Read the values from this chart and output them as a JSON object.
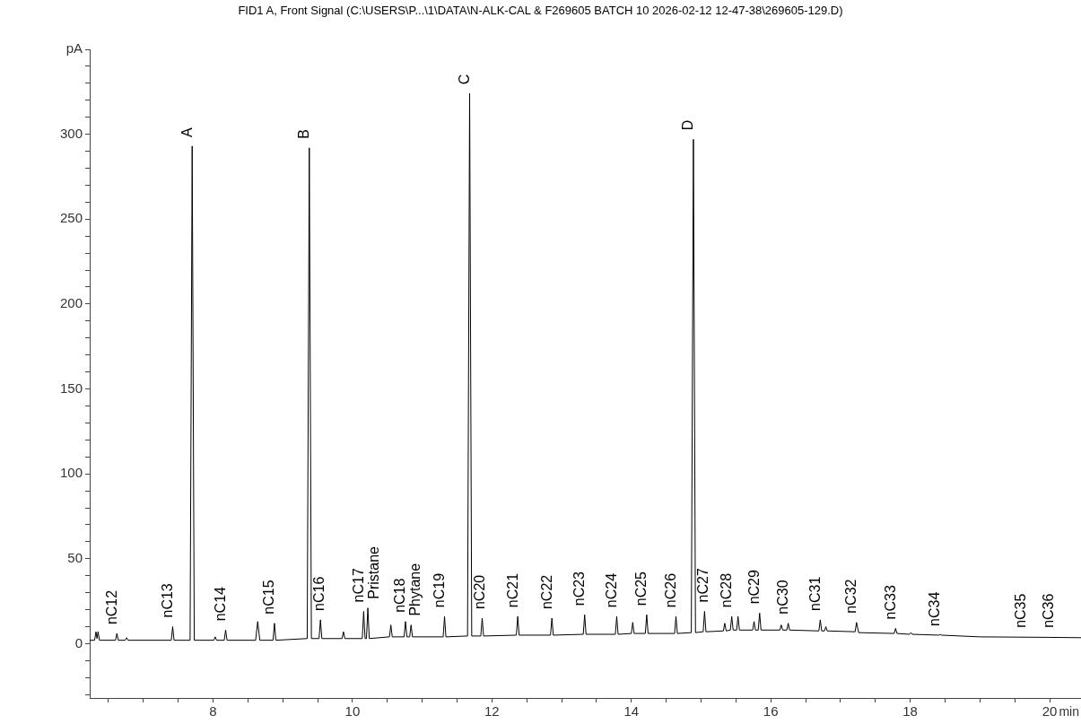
{
  "chart_data": {
    "type": "line",
    "title": "FID1 A, Front Signal (C:\\USERS\\P...\\1\\DATA\\N-ALK-CAL & F269605 BATCH 10 2026-02-12 12-47-38\\269605-129.D)",
    "xlabel": "min",
    "marker": "none",
    "legend": false,
    "series": [
      {
        "color": "#000000",
        "x": [
          6.23,
          6.3,
          6.32,
          6.335,
          6.35,
          6.37,
          6.6,
          6.62,
          6.64,
          6.74,
          6.76,
          6.78,
          7.4,
          7.42,
          7.44,
          7.67,
          7.7,
          7.73,
          8.01,
          8.03,
          8.05,
          8.16,
          8.18,
          8.2,
          8.61,
          8.64,
          8.67,
          8.86,
          8.88,
          8.9,
          9.35,
          9.38,
          9.41,
          9.52,
          9.54,
          9.56,
          9.85,
          9.87,
          9.89,
          10.14,
          10.16,
          10.18,
          10.2,
          10.22,
          10.24,
          10.53,
          10.55,
          10.57,
          10.74,
          10.76,
          10.78,
          10.82,
          10.84,
          10.86,
          11.3,
          11.32,
          11.34,
          11.65,
          11.68,
          11.71,
          11.84,
          11.86,
          11.88,
          12.35,
          12.37,
          12.39,
          12.84,
          12.86,
          12.88,
          13.31,
          13.33,
          13.35,
          13.77,
          13.79,
          13.81,
          14,
          14.02,
          14.04,
          14.2,
          14.22,
          14.24,
          14.62,
          14.64,
          14.66,
          14.86,
          14.89,
          14.92,
          15.03,
          15.05,
          15.07,
          15.32,
          15.34,
          15.36,
          15.42,
          15.44,
          15.46,
          15.51,
          15.53,
          15.55,
          15.74,
          15.76,
          15.78,
          15.82,
          15.84,
          15.86,
          16.13,
          16.15,
          16.17,
          16.23,
          16.25,
          16.27,
          16.69,
          16.71,
          16.73,
          16.77,
          16.79,
          16.81,
          17.21,
          17.23,
          17.26,
          17.77,
          17.79,
          17.81,
          17.99,
          18.01,
          18.03,
          18.41,
          18.43,
          18.45,
          19,
          20,
          20.45
        ],
        "values": [
          2,
          2,
          7,
          3,
          7,
          2,
          2,
          6,
          2,
          2,
          3.5,
          2,
          2,
          10,
          2,
          2,
          293,
          2,
          2,
          4,
          2,
          2,
          8,
          2,
          2,
          13,
          2,
          2,
          12,
          2,
          3,
          292,
          3,
          3,
          14,
          3,
          3,
          7,
          3,
          3,
          19,
          3,
          3,
          21,
          3,
          4,
          11,
          4,
          4,
          13,
          4,
          4,
          11,
          4,
          4,
          16,
          4,
          4.5,
          324,
          4.5,
          4.5,
          15,
          4.5,
          5,
          16,
          5,
          5,
          15,
          5,
          5.5,
          17,
          5.5,
          5.5,
          16,
          5.5,
          6,
          12.5,
          6,
          6,
          17,
          6,
          6,
          16,
          6,
          6.5,
          297,
          6.5,
          7,
          19,
          7,
          7.5,
          12,
          7.5,
          8,
          16,
          8,
          8,
          16,
          8,
          8,
          13,
          8,
          8,
          18,
          8,
          8,
          11,
          8,
          8,
          12,
          8,
          7.5,
          14,
          7.5,
          7.5,
          10,
          7.5,
          7,
          12.5,
          6.5,
          6,
          9,
          6,
          5.5,
          6.5,
          5.5,
          5,
          5.5,
          5,
          4,
          3.7,
          3.5
        ]
      }
    ],
    "annotations": [
      {
        "text": "nC12",
        "x": 6.62,
        "y": 6
      },
      {
        "text": "nC13",
        "x": 7.42,
        "y": 10
      },
      {
        "text": "A",
        "x": 7.7,
        "y": 293
      },
      {
        "text": "nC14",
        "x": 8.18,
        "y": 8
      },
      {
        "text": "nC15",
        "x": 8.88,
        "y": 12
      },
      {
        "text": "B",
        "x": 9.38,
        "y": 292
      },
      {
        "text": "nC16",
        "x": 9.54,
        "y": 14
      },
      {
        "text": "nC17",
        "x": 10.16,
        "y": 19
      },
      {
        "text": "Pristane",
        "x": 10.22,
        "y": 21
      },
      {
        "text": "nC18",
        "x": 10.76,
        "y": 13
      },
      {
        "text": "Phytane",
        "x": 10.84,
        "y": 11
      },
      {
        "text": "nC19",
        "x": 11.32,
        "y": 16
      },
      {
        "text": "C",
        "x": 11.68,
        "y": 324
      },
      {
        "text": "nC20",
        "x": 11.86,
        "y": 15
      },
      {
        "text": "nC21",
        "x": 12.37,
        "y": 16
      },
      {
        "text": "nC22",
        "x": 12.86,
        "y": 15
      },
      {
        "text": "nC23",
        "x": 13.33,
        "y": 17
      },
      {
        "text": "nC24",
        "x": 13.79,
        "y": 16
      },
      {
        "text": "nC25",
        "x": 14.22,
        "y": 17
      },
      {
        "text": "nC26",
        "x": 14.64,
        "y": 16
      },
      {
        "text": "D",
        "x": 14.89,
        "y": 297
      },
      {
        "text": "nC27",
        "x": 15.05,
        "y": 19
      },
      {
        "text": "nC28",
        "x": 15.44,
        "y": 16
      },
      {
        "text": "nC29",
        "x": 15.84,
        "y": 18
      },
      {
        "text": "nC30",
        "x": 16.25,
        "y": 12
      },
      {
        "text": "nC31",
        "x": 16.71,
        "y": 14
      },
      {
        "text": "nC32",
        "x": 17.23,
        "y": 12.5
      },
      {
        "text": "nC33",
        "x": 17.79,
        "y": 9
      },
      {
        "text": "nC34",
        "x": 18.43,
        "y": 5
      },
      {
        "text": "nC35",
        "x": 19.66,
        "y": 4
      },
      {
        "text": "nC36",
        "x": 20.06,
        "y": 4
      }
    ],
    "xlim": [
      6.23,
      20.45
    ],
    "xticks": [
      {
        "value": 6.5,
        "label": null
      },
      {
        "value": 7,
        "label": null
      },
      {
        "value": 7.5,
        "label": null
      },
      8,
      {
        "value": 8.5,
        "label": null
      },
      {
        "value": 9,
        "label": null
      },
      {
        "value": 9.5,
        "label": null
      },
      10,
      {
        "value": 10.5,
        "label": null
      },
      {
        "value": 11,
        "label": null
      },
      {
        "value": 11.5,
        "label": null
      },
      12,
      {
        "value": 12.5,
        "label": null
      },
      {
        "value": 13,
        "label": null
      },
      {
        "value": 13.5,
        "label": null
      },
      14,
      {
        "value": 14.5,
        "label": null
      },
      {
        "value": 15,
        "label": null
      },
      {
        "value": 15.5,
        "label": null
      },
      16,
      {
        "value": 16.5,
        "label": null
      },
      {
        "value": 17,
        "label": null
      },
      {
        "value": 17.5,
        "label": null
      },
      18,
      {
        "value": 18.5,
        "label": null
      },
      {
        "value": 19,
        "label": null
      },
      {
        "value": 19.5,
        "label": null
      },
      20
    ],
    "ylim": [
      -32,
      350
    ],
    "yticks": [
      {
        "value": -30,
        "label": null
      },
      {
        "value": -20,
        "label": null
      },
      {
        "value": -10,
        "label": null
      },
      0,
      {
        "value": 10,
        "label": null
      },
      {
        "value": 20,
        "label": null
      },
      {
        "value": 30,
        "label": null
      },
      {
        "value": 40,
        "label": null
      },
      50,
      {
        "value": 60,
        "label": null
      },
      {
        "value": 70,
        "label": null
      },
      {
        "value": 80,
        "label": null
      },
      {
        "value": 90,
        "label": null
      },
      100,
      {
        "value": 110,
        "label": null
      },
      {
        "value": 120,
        "label": null
      },
      {
        "value": 130,
        "label": null
      },
      {
        "value": 140,
        "label": null
      },
      150,
      {
        "value": 160,
        "label": null
      },
      {
        "value": 170,
        "label": null
      },
      {
        "value": 180,
        "label": null
      },
      {
        "value": 190,
        "label": null
      },
      200,
      {
        "value": 210,
        "label": null
      },
      {
        "value": 220,
        "label": null
      },
      {
        "value": 230,
        "label": null
      },
      {
        "value": 240,
        "label": null
      },
      250,
      {
        "value": 260,
        "label": null
      },
      {
        "value": 270,
        "label": null
      },
      {
        "value": 280,
        "label": null
      },
      {
        "value": 290,
        "label": null
      },
      300,
      {
        "value": 310,
        "label": null
      },
      {
        "value": 320,
        "label": null
      },
      {
        "value": 330,
        "label": null
      },
      {
        "value": 340,
        "label": null
      },
      {
        "value": 350,
        "label": "pA"
      }
    ]
  }
}
